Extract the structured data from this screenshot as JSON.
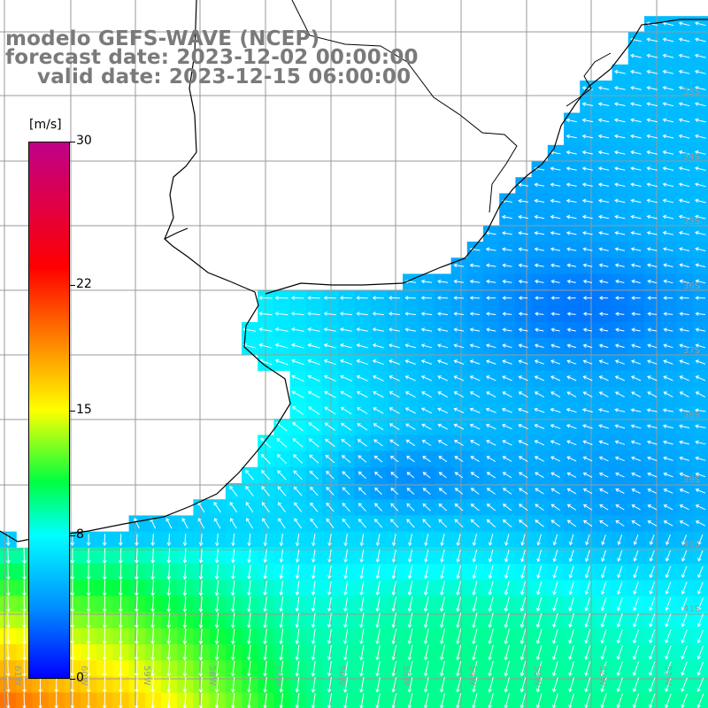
{
  "title": {
    "line1": "modelo GEFS-WAVE (NCEP)",
    "line2": "forecast date: 2023-12-02 00:00:00",
    "line3": "valid date: 2023-12-15 06:00:00"
  },
  "colorbar": {
    "unit": "[m/s]",
    "min": 0,
    "max": 30,
    "ticks": [
      {
        "value": 30,
        "label": "30"
      },
      {
        "value": 22,
        "label": "22"
      },
      {
        "value": 15,
        "label": "15"
      },
      {
        "value": 8,
        "label": "8"
      },
      {
        "value": 0,
        "label": "0"
      }
    ],
    "stops": [
      {
        "value": 0,
        "color": "#0000ff"
      },
      {
        "value": 4,
        "color": "#0090ff"
      },
      {
        "value": 8,
        "color": "#00ffff"
      },
      {
        "value": 11,
        "color": "#00ff40"
      },
      {
        "value": 15,
        "color": "#ffff00"
      },
      {
        "value": 19,
        "color": "#ff8000"
      },
      {
        "value": 23,
        "color": "#ff0000"
      },
      {
        "value": 30,
        "color": "#c0008a"
      }
    ]
  },
  "map": {
    "lon_labels": [
      "61W",
      "60W",
      "59W",
      "58W",
      "57W",
      "56W",
      "55W",
      "54W",
      "53W",
      "52W",
      "51W"
    ],
    "lat_labels": [
      "33S",
      "34S",
      "35S",
      "36S",
      "37S",
      "38S",
      "39S",
      "40S",
      "41S"
    ],
    "land_color": "#ffffff",
    "grid_color": "#9a9a9a",
    "coast_color": "#000000",
    "arrow_color": "#ffffff"
  }
}
